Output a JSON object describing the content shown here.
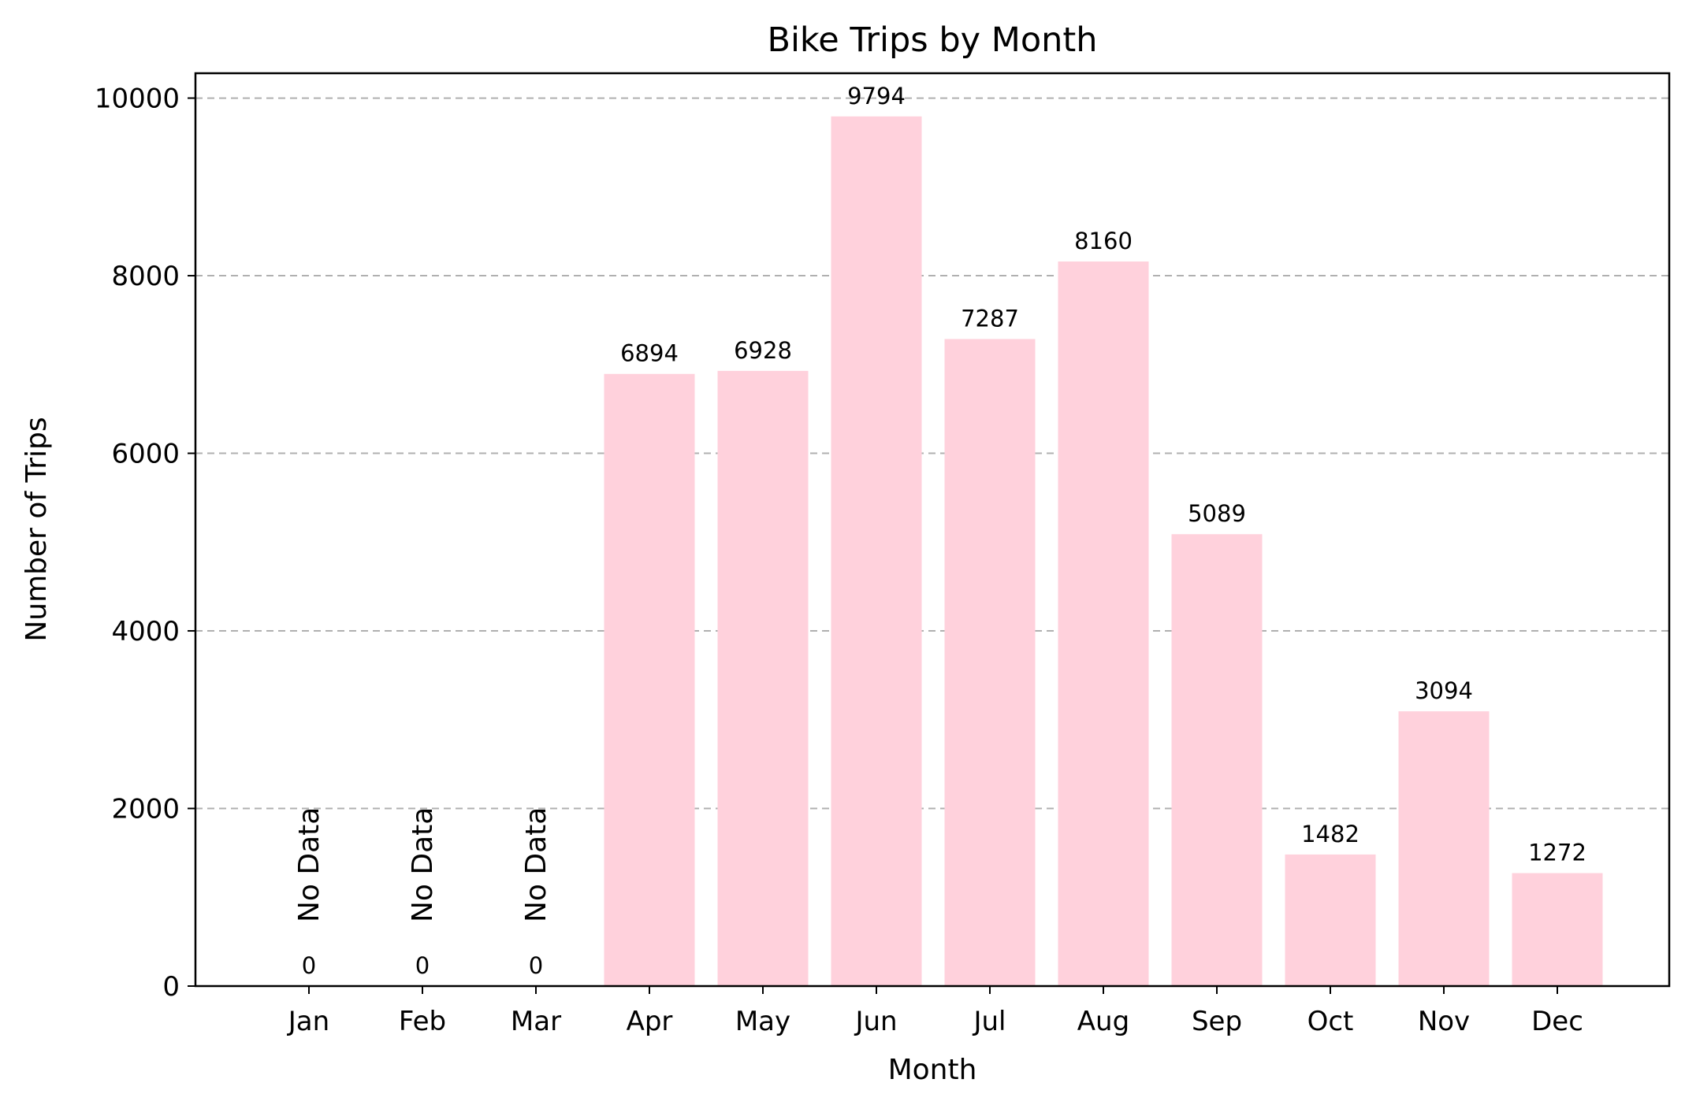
{
  "chart_data": {
    "type": "bar",
    "title": "Bike Trips by Month",
    "xlabel": "Month",
    "ylabel": "Number of Trips",
    "categories": [
      "Jan",
      "Feb",
      "Mar",
      "Apr",
      "May",
      "Jun",
      "Jul",
      "Aug",
      "Sep",
      "Oct",
      "Nov",
      "Dec"
    ],
    "values": [
      0,
      0,
      0,
      6894,
      6928,
      9794,
      7287,
      8160,
      5089,
      1482,
      3094,
      1272
    ],
    "value_labels": [
      "0",
      "0",
      "0",
      "6894",
      "6928",
      "9794",
      "7287",
      "8160",
      "5089",
      "1482",
      "3094",
      "1272"
    ],
    "no_data_label": "No Data",
    "ylim": [
      0,
      10280
    ],
    "yticks": [
      0,
      2000,
      4000,
      6000,
      8000,
      10000
    ],
    "ytick_labels": [
      "0",
      "2000",
      "4000",
      "6000",
      "8000",
      "10000"
    ],
    "grid": "y-dashed",
    "bar_color": "#ffd1dc",
    "grid_color": "#b0b0b0"
  }
}
